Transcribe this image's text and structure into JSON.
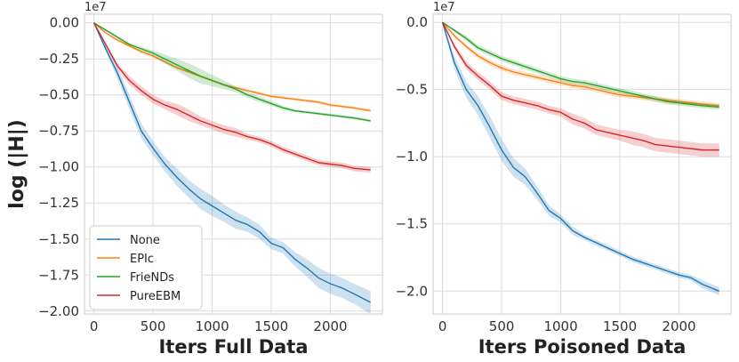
{
  "chart_data": [
    {
      "type": "line",
      "panel": "left",
      "title": "",
      "xlabel": "Iters Full Data",
      "ylabel": "log (|H|)",
      "multiplier": "1e7",
      "xlim": [
        -80,
        2440
      ],
      "ylim": [
        -2.02,
        0.06
      ],
      "xticks": [
        0,
        500,
        1000,
        1500,
        2000
      ],
      "xtick_labels": [
        "0",
        "500",
        "1000",
        "1500",
        "2000"
      ],
      "yticks": [
        0.0,
        -0.25,
        -0.5,
        -0.75,
        -1.0,
        -1.25,
        -1.5,
        -1.75,
        -2.0
      ],
      "ytick_labels": [
        "0.00",
        "−0.25",
        "−0.50",
        "−0.75",
        "−1.00",
        "−1.25",
        "−1.50",
        "−1.75",
        "−2.00"
      ],
      "grid": true,
      "legend": "lower-left",
      "series": [
        {
          "name": "None",
          "color": "#1f77b4",
          "x": [
            0,
            100,
            200,
            300,
            400,
            500,
            600,
            700,
            800,
            900,
            1000,
            1100,
            1200,
            1300,
            1400,
            1500,
            1600,
            1700,
            1800,
            1900,
            2000,
            2100,
            2200,
            2340
          ],
          "values": [
            0.0,
            -0.18,
            -0.35,
            -0.55,
            -0.75,
            -0.87,
            -0.98,
            -1.07,
            -1.15,
            -1.22,
            -1.27,
            -1.32,
            -1.37,
            -1.4,
            -1.45,
            -1.53,
            -1.56,
            -1.64,
            -1.7,
            -1.77,
            -1.81,
            -1.84,
            -1.88,
            -1.94
          ],
          "band": [
            0.0,
            0.02,
            0.04,
            0.05,
            0.05,
            0.05,
            0.05,
            0.06,
            0.06,
            0.07,
            0.07,
            0.06,
            0.06,
            0.05,
            0.05,
            0.04,
            0.04,
            0.05,
            0.06,
            0.07,
            0.07,
            0.07,
            0.07,
            0.08
          ]
        },
        {
          "name": "EPIc",
          "color": "#ff7f0e",
          "x": [
            0,
            100,
            200,
            300,
            400,
            500,
            600,
            700,
            800,
            900,
            1000,
            1100,
            1200,
            1300,
            1400,
            1500,
            1600,
            1700,
            1800,
            1900,
            2000,
            2100,
            2200,
            2340
          ],
          "values": [
            0.0,
            -0.07,
            -0.12,
            -0.16,
            -0.2,
            -0.23,
            -0.27,
            -0.31,
            -0.34,
            -0.37,
            -0.4,
            -0.43,
            -0.45,
            -0.47,
            -0.49,
            -0.51,
            -0.52,
            -0.53,
            -0.54,
            -0.55,
            -0.57,
            -0.58,
            -0.59,
            -0.61
          ],
          "band": [
            0.0,
            0.005,
            0.008,
            0.01,
            0.01,
            0.01,
            0.01,
            0.01,
            0.01,
            0.01,
            0.01,
            0.01,
            0.01,
            0.01,
            0.01,
            0.01,
            0.01,
            0.01,
            0.01,
            0.01,
            0.01,
            0.01,
            0.01,
            0.01
          ]
        },
        {
          "name": "FrieNDs",
          "color": "#2ca02c",
          "x": [
            0,
            100,
            200,
            300,
            400,
            500,
            600,
            700,
            800,
            900,
            1000,
            1100,
            1200,
            1300,
            1400,
            1500,
            1600,
            1700,
            1800,
            1900,
            2000,
            2100,
            2200,
            2340
          ],
          "values": [
            0.0,
            -0.05,
            -0.1,
            -0.15,
            -0.18,
            -0.21,
            -0.25,
            -0.29,
            -0.33,
            -0.37,
            -0.4,
            -0.43,
            -0.46,
            -0.5,
            -0.53,
            -0.56,
            -0.59,
            -0.61,
            -0.62,
            -0.63,
            -0.64,
            -0.65,
            -0.66,
            -0.68
          ],
          "band": [
            0.0,
            0.01,
            0.01,
            0.01,
            0.015,
            0.02,
            0.03,
            0.04,
            0.05,
            0.05,
            0.04,
            0.03,
            0.02,
            0.02,
            0.02,
            0.015,
            0.015,
            0.01,
            0.01,
            0.01,
            0.01,
            0.01,
            0.01,
            0.01
          ]
        },
        {
          "name": "PureEBM",
          "color": "#d62728",
          "x": [
            0,
            100,
            200,
            300,
            400,
            500,
            600,
            700,
            800,
            900,
            1000,
            1100,
            1200,
            1300,
            1400,
            1500,
            1600,
            1700,
            1800,
            1900,
            2000,
            2100,
            2200,
            2340
          ],
          "values": [
            0.0,
            -0.15,
            -0.3,
            -0.4,
            -0.47,
            -0.53,
            -0.57,
            -0.6,
            -0.64,
            -0.68,
            -0.71,
            -0.74,
            -0.76,
            -0.79,
            -0.81,
            -0.84,
            -0.88,
            -0.91,
            -0.94,
            -0.97,
            -0.98,
            -0.99,
            -1.01,
            -1.02
          ],
          "band": [
            0.0,
            0.01,
            0.02,
            0.03,
            0.03,
            0.03,
            0.03,
            0.04,
            0.04,
            0.03,
            0.03,
            0.03,
            0.03,
            0.02,
            0.02,
            0.02,
            0.02,
            0.02,
            0.02,
            0.02,
            0.02,
            0.02,
            0.02,
            0.02
          ]
        }
      ]
    },
    {
      "type": "line",
      "panel": "right",
      "title": "",
      "xlabel": "Iters Poisoned Data",
      "ylabel": "",
      "multiplier": "1e7",
      "xlim": [
        -80,
        2440
      ],
      "ylim": [
        -2.17,
        0.06
      ],
      "xticks": [
        0,
        500,
        1000,
        1500,
        2000
      ],
      "xtick_labels": [
        "0",
        "500",
        "1000",
        "1500",
        "2000"
      ],
      "yticks": [
        0.0,
        -0.5,
        -1.0,
        -1.5,
        -2.0
      ],
      "ytick_labels": [
        "0.0",
        "−0.5",
        "−1.0",
        "−1.5",
        "−2.0"
      ],
      "grid": true,
      "legend": "none",
      "series": [
        {
          "name": "None",
          "color": "#1f77b4",
          "x": [
            0,
            100,
            200,
            300,
            400,
            500,
            600,
            700,
            800,
            900,
            1000,
            1100,
            1200,
            1300,
            1400,
            1500,
            1600,
            1700,
            1800,
            1900,
            2000,
            2100,
            2200,
            2340
          ],
          "values": [
            0.0,
            -0.3,
            -0.5,
            -0.62,
            -0.78,
            -0.95,
            -1.08,
            -1.15,
            -1.27,
            -1.4,
            -1.46,
            -1.55,
            -1.6,
            -1.64,
            -1.68,
            -1.72,
            -1.76,
            -1.79,
            -1.82,
            -1.85,
            -1.88,
            -1.9,
            -1.95,
            -2.0
          ],
          "band": [
            0.0,
            0.05,
            0.06,
            0.07,
            0.08,
            0.08,
            0.07,
            0.06,
            0.05,
            0.04,
            0.03,
            0.03,
            0.02,
            0.02,
            0.02,
            0.02,
            0.02,
            0.02,
            0.02,
            0.02,
            0.02,
            0.02,
            0.03,
            0.03
          ]
        },
        {
          "name": "EPIc",
          "color": "#ff7f0e",
          "x": [
            0,
            100,
            200,
            300,
            400,
            500,
            600,
            700,
            800,
            900,
            1000,
            1100,
            1200,
            1300,
            1400,
            1500,
            1600,
            1700,
            1800,
            1900,
            2000,
            2100,
            2200,
            2340
          ],
          "values": [
            0.0,
            -0.1,
            -0.18,
            -0.25,
            -0.3,
            -0.34,
            -0.37,
            -0.39,
            -0.41,
            -0.43,
            -0.45,
            -0.47,
            -0.48,
            -0.5,
            -0.52,
            -0.54,
            -0.55,
            -0.56,
            -0.57,
            -0.58,
            -0.59,
            -0.6,
            -0.61,
            -0.62
          ],
          "band": [
            0.0,
            0.01,
            0.015,
            0.02,
            0.02,
            0.02,
            0.02,
            0.02,
            0.02,
            0.02,
            0.02,
            0.02,
            0.02,
            0.02,
            0.02,
            0.02,
            0.02,
            0.02,
            0.02,
            0.02,
            0.02,
            0.02,
            0.02,
            0.02
          ]
        },
        {
          "name": "FrieNDs",
          "color": "#2ca02c",
          "x": [
            0,
            100,
            200,
            300,
            400,
            500,
            600,
            700,
            800,
            900,
            1000,
            1100,
            1200,
            1300,
            1400,
            1500,
            1600,
            1700,
            1800,
            1900,
            2000,
            2100,
            2200,
            2340
          ],
          "values": [
            0.0,
            -0.06,
            -0.12,
            -0.19,
            -0.23,
            -0.27,
            -0.3,
            -0.33,
            -0.36,
            -0.39,
            -0.42,
            -0.44,
            -0.45,
            -0.47,
            -0.49,
            -0.51,
            -0.53,
            -0.55,
            -0.57,
            -0.59,
            -0.6,
            -0.61,
            -0.62,
            -0.63
          ],
          "band": [
            0.0,
            0.01,
            0.02,
            0.02,
            0.02,
            0.02,
            0.02,
            0.02,
            0.02,
            0.02,
            0.02,
            0.02,
            0.02,
            0.02,
            0.02,
            0.02,
            0.02,
            0.02,
            0.02,
            0.02,
            0.02,
            0.02,
            0.02,
            0.02
          ]
        },
        {
          "name": "PureEBM",
          "color": "#d62728",
          "x": [
            0,
            100,
            200,
            300,
            400,
            500,
            600,
            700,
            800,
            900,
            1000,
            1100,
            1200,
            1300,
            1400,
            1500,
            1600,
            1700,
            1800,
            1900,
            2000,
            2100,
            2200,
            2340
          ],
          "values": [
            0.0,
            -0.18,
            -0.32,
            -0.4,
            -0.47,
            -0.55,
            -0.58,
            -0.6,
            -0.62,
            -0.65,
            -0.67,
            -0.72,
            -0.75,
            -0.8,
            -0.82,
            -0.84,
            -0.86,
            -0.88,
            -0.91,
            -0.92,
            -0.93,
            -0.94,
            -0.95,
            -0.95
          ],
          "band": [
            0.0,
            0.02,
            0.03,
            0.03,
            0.03,
            0.03,
            0.03,
            0.03,
            0.03,
            0.03,
            0.03,
            0.04,
            0.04,
            0.04,
            0.04,
            0.04,
            0.05,
            0.05,
            0.05,
            0.05,
            0.05,
            0.05,
            0.05,
            0.05
          ]
        }
      ]
    }
  ]
}
